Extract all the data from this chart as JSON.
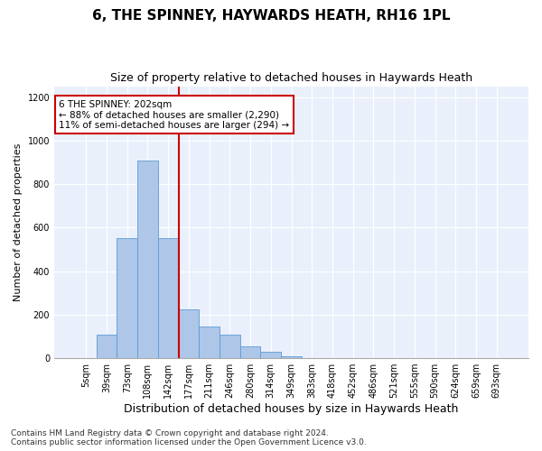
{
  "title": "6, THE SPINNEY, HAYWARDS HEATH, RH16 1PL",
  "subtitle": "Size of property relative to detached houses in Haywards Heath",
  "xlabel": "Distribution of detached houses by size in Haywards Heath",
  "ylabel": "Number of detached properties",
  "bar_color": "#aec6e8",
  "bar_edge_color": "#5b9bd5",
  "background_color": "#eaf0fb",
  "grid_color": "#ffffff",
  "categories": [
    "5sqm",
    "39sqm",
    "73sqm",
    "108sqm",
    "142sqm",
    "177sqm",
    "211sqm",
    "246sqm",
    "280sqm",
    "314sqm",
    "349sqm",
    "383sqm",
    "418sqm",
    "452sqm",
    "486sqm",
    "521sqm",
    "555sqm",
    "590sqm",
    "624sqm",
    "659sqm",
    "693sqm"
  ],
  "values": [
    0,
    110,
    550,
    910,
    550,
    225,
    145,
    110,
    55,
    30,
    10,
    0,
    0,
    0,
    0,
    0,
    0,
    0,
    0,
    0,
    0
  ],
  "ylim": [
    0,
    1250
  ],
  "yticks": [
    0,
    200,
    400,
    600,
    800,
    1000,
    1200
  ],
  "annotation_text": "6 THE SPINNEY: 202sqm\n← 88% of detached houses are smaller (2,290)\n11% of semi-detached houses are larger (294) →",
  "annotation_box_color": "#ffffff",
  "annotation_box_edge": "#cc0000",
  "vline_color": "#cc0000",
  "vline_x": 4.5,
  "footer": "Contains HM Land Registry data © Crown copyright and database right 2024.\nContains public sector information licensed under the Open Government Licence v3.0.",
  "title_fontsize": 11,
  "subtitle_fontsize": 9,
  "xlabel_fontsize": 9,
  "ylabel_fontsize": 8,
  "footer_fontsize": 6.5,
  "tick_fontsize": 7
}
